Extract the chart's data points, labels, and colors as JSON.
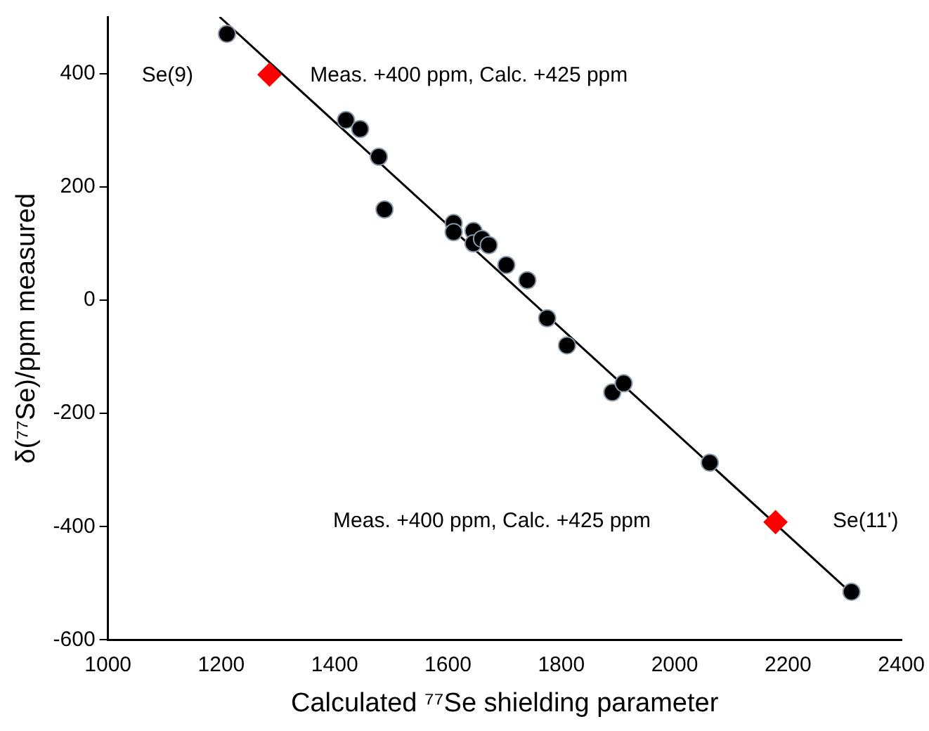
{
  "chart_data": {
    "type": "scatter",
    "xlabel": "Calculated ⁷⁷Se shielding parameter",
    "ylabel": "δ(⁷⁷Se)/ppm measured",
    "xlim": [
      1000,
      2400
    ],
    "xticks": [
      1000,
      1200,
      1400,
      1600,
      1800,
      2000,
      2200,
      2400
    ],
    "ylim": [
      -600,
      500
    ],
    "yticks": [
      -600,
      -400,
      -200,
      0,
      200,
      400
    ],
    "grid": false,
    "series": [
      {
        "marker": "circle",
        "color": "#000000",
        "x": [
          1210,
          1420,
          1445,
          1478,
          1488,
          1610,
          1610,
          1645,
          1645,
          1660,
          1672,
          1703,
          1740,
          1775,
          1810,
          1890,
          1910,
          2062,
          2312
        ],
        "values": [
          470,
          318,
          302,
          253,
          160,
          136,
          120,
          122,
          100,
          108,
          97,
          62,
          35,
          -32,
          -80,
          -163,
          -147,
          -287,
          -515
        ]
      },
      {
        "marker": "diamond",
        "color": "#ff0000",
        "x": [
          1285,
          2178
        ],
        "values": [
          398,
          -392
        ]
      },
      {
        "type": "line",
        "marker": "none",
        "color": "#000000",
        "x": [
          1197,
          2320
        ],
        "values": [
          500,
          -525
        ]
      }
    ],
    "annotations": [
      "Se(9)",
      "Meas. +400 ppm, Calc. +425 ppm",
      "Meas. +400 ppm, Calc. +425 ppm",
      "Se(11')"
    ]
  }
}
